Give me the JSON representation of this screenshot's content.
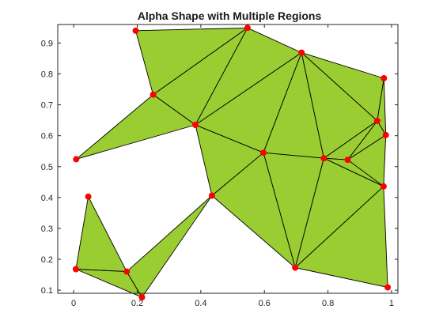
{
  "chart_data": {
    "type": "alpha-shape",
    "title": "Alpha Shape with Multiple Regions",
    "xlabel": "",
    "ylabel": "",
    "xlim": [
      -0.05,
      1.02
    ],
    "ylim": [
      0.09,
      0.96
    ],
    "xticks": [
      0,
      0.2,
      0.4,
      0.6,
      0.8,
      1
    ],
    "xtick_labels": [
      "0",
      "0.2",
      "0.4",
      "0.6",
      "0.8",
      "1"
    ],
    "yticks": [
      0.1,
      0.2,
      0.3,
      0.4,
      0.5,
      0.6,
      0.7,
      0.8,
      0.9
    ],
    "ytick_labels": [
      "0.1",
      "0.2",
      "0.3",
      "0.4",
      "0.5",
      "0.6",
      "0.7",
      "0.8",
      "0.9"
    ],
    "grid": false,
    "points": [
      {
        "x": 0.195,
        "y": 0.94
      },
      {
        "x": 0.547,
        "y": 0.949
      },
      {
        "x": 0.717,
        "y": 0.869
      },
      {
        "x": 0.976,
        "y": 0.786
      },
      {
        "x": 0.25,
        "y": 0.733
      },
      {
        "x": 0.383,
        "y": 0.635
      },
      {
        "x": 0.955,
        "y": 0.648
      },
      {
        "x": 0.982,
        "y": 0.602
      },
      {
        "x": 0.008,
        "y": 0.524
      },
      {
        "x": 0.597,
        "y": 0.545
      },
      {
        "x": 0.787,
        "y": 0.527
      },
      {
        "x": 0.862,
        "y": 0.522
      },
      {
        "x": 0.435,
        "y": 0.406
      },
      {
        "x": 0.975,
        "y": 0.436
      },
      {
        "x": 0.046,
        "y": 0.403
      },
      {
        "x": 0.697,
        "y": 0.173
      },
      {
        "x": 0.007,
        "y": 0.168
      },
      {
        "x": 0.167,
        "y": 0.16
      },
      {
        "x": 0.215,
        "y": 0.077
      },
      {
        "x": 0.988,
        "y": 0.109
      }
    ],
    "triangles": [
      [
        0,
        1,
        4
      ],
      [
        1,
        4,
        5
      ],
      [
        1,
        2,
        5
      ],
      [
        4,
        5,
        8
      ],
      [
        2,
        5,
        9
      ],
      [
        5,
        9,
        12
      ],
      [
        2,
        9,
        10
      ],
      [
        2,
        3,
        6
      ],
      [
        2,
        6,
        10
      ],
      [
        3,
        6,
        7
      ],
      [
        6,
        7,
        11
      ],
      [
        6,
        10,
        11
      ],
      [
        7,
        11,
        13
      ],
      [
        10,
        11,
        13
      ],
      [
        9,
        10,
        15
      ],
      [
        9,
        12,
        15
      ],
      [
        10,
        13,
        15
      ],
      [
        13,
        15,
        19
      ],
      [
        14,
        16,
        17
      ],
      [
        16,
        17,
        18
      ],
      [
        17,
        18,
        12
      ]
    ],
    "fill_color": "#9acd32",
    "edge_color": "#000000",
    "marker_color": "#ff0000"
  }
}
